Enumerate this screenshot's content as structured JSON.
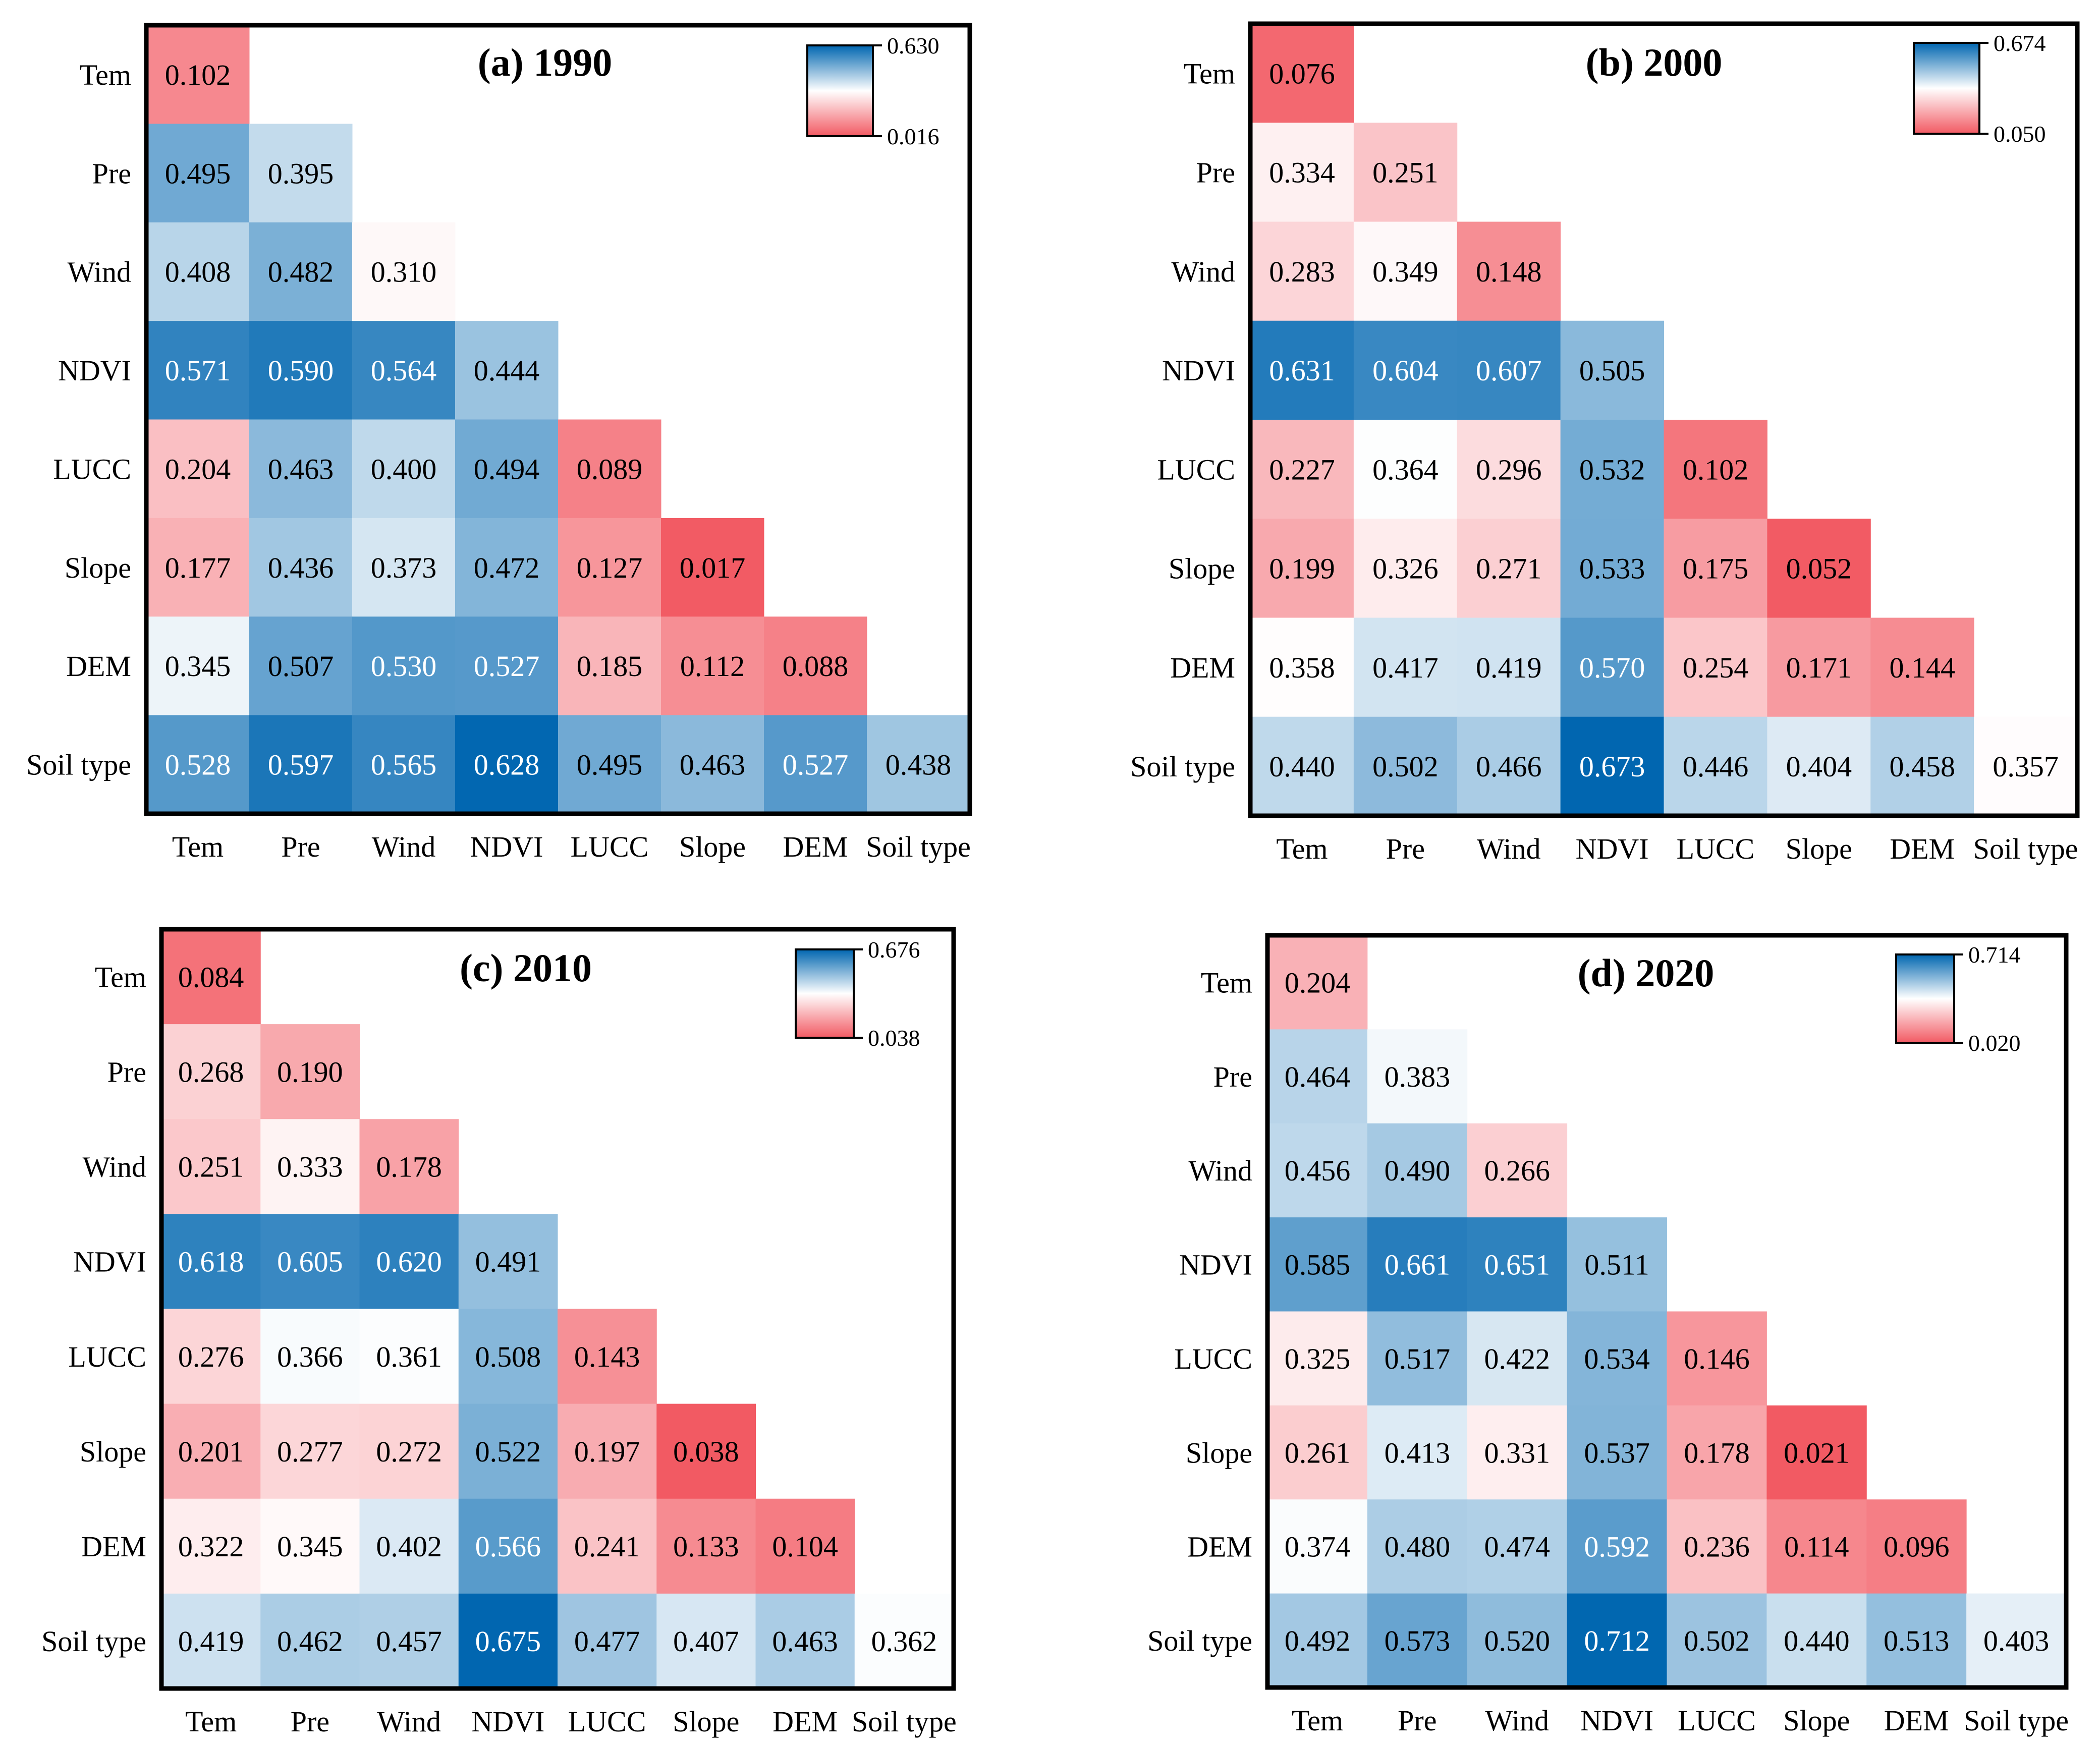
{
  "variables": [
    "Tem",
    "Pre",
    "Wind",
    "NDVI",
    "LUCC",
    "Slope",
    "DEM",
    "Soil type"
  ],
  "colors": {
    "high": "#0066b0",
    "mid": "#ffffff",
    "low": "#f25a63",
    "frame": "#000000",
    "text_dark": "#000000",
    "text_light": "#ffffff"
  },
  "chart_data": [
    {
      "type": "heatmap",
      "title": "(a) 1990",
      "colorbar": {
        "max_label": "0.630",
        "min_label": "0.016",
        "max": 0.63,
        "min": 0.016
      },
      "rows": [
        "Tem",
        "Pre",
        "Wind",
        "NDVI",
        "LUCC",
        "Slope",
        "DEM",
        "Soil type"
      ],
      "columns": [
        "Tem",
        "Pre",
        "Wind",
        "NDVI",
        "LUCC",
        "Slope",
        "DEM",
        "Soil type"
      ],
      "values": [
        [
          "0.102"
        ],
        [
          "0.495",
          "0.395"
        ],
        [
          "0.408",
          "0.482",
          "0.310"
        ],
        [
          "0.571",
          "0.590",
          "0.564",
          "0.444"
        ],
        [
          "0.204",
          "0.463",
          "0.400",
          "0.494",
          "0.089"
        ],
        [
          "0.177",
          "0.436",
          "0.373",
          "0.472",
          "0.127",
          "0.017"
        ],
        [
          "0.345",
          "0.507",
          "0.530",
          "0.527",
          "0.185",
          "0.112",
          "0.088"
        ],
        [
          "0.528",
          "0.597",
          "0.565",
          "0.628",
          "0.495",
          "0.463",
          "0.527",
          "0.438"
        ]
      ]
    },
    {
      "type": "heatmap",
      "title": "(b) 2000",
      "colorbar": {
        "max_label": "0.674",
        "min_label": "0.050",
        "max": 0.674,
        "min": 0.05
      },
      "rows": [
        "Tem",
        "Pre",
        "Wind",
        "NDVI",
        "LUCC",
        "Slope",
        "DEM",
        "Soil type"
      ],
      "columns": [
        "Tem",
        "Pre",
        "Wind",
        "NDVI",
        "LUCC",
        "Slope",
        "DEM",
        "Soil type"
      ],
      "values": [
        [
          "0.076"
        ],
        [
          "0.334",
          "0.251"
        ],
        [
          "0.283",
          "0.349",
          "0.148"
        ],
        [
          "0.631",
          "0.604",
          "0.607",
          "0.505"
        ],
        [
          "0.227",
          "0.364",
          "0.296",
          "0.532",
          "0.102"
        ],
        [
          "0.199",
          "0.326",
          "0.271",
          "0.533",
          "0.175",
          "0.052"
        ],
        [
          "0.358",
          "0.417",
          "0.419",
          "0.570",
          "0.254",
          "0.171",
          "0.144"
        ],
        [
          "0.440",
          "0.502",
          "0.466",
          "0.673",
          "0.446",
          "0.404",
          "0.458",
          "0.357"
        ]
      ]
    },
    {
      "type": "heatmap",
      "title": "(c) 2010",
      "colorbar": {
        "max_label": "0.676",
        "min_label": "0.038",
        "max": 0.676,
        "min": 0.038
      },
      "rows": [
        "Tem",
        "Pre",
        "Wind",
        "NDVI",
        "LUCC",
        "Slope",
        "DEM",
        "Soil type"
      ],
      "columns": [
        "Tem",
        "Pre",
        "Wind",
        "NDVI",
        "LUCC",
        "Slope",
        "DEM",
        "Soil type"
      ],
      "values": [
        [
          "0.084"
        ],
        [
          "0.268",
          "0.190"
        ],
        [
          "0.251",
          "0.333",
          "0.178"
        ],
        [
          "0.618",
          "0.605",
          "0.620",
          "0.491"
        ],
        [
          "0.276",
          "0.366",
          "0.361",
          "0.508",
          "0.143"
        ],
        [
          "0.201",
          "0.277",
          "0.272",
          "0.522",
          "0.197",
          "0.038"
        ],
        [
          "0.322",
          "0.345",
          "0.402",
          "0.566",
          "0.241",
          "0.133",
          "0.104"
        ],
        [
          "0.419",
          "0.462",
          "0.457",
          "0.675",
          "0.477",
          "0.407",
          "0.463",
          "0.362"
        ]
      ]
    },
    {
      "type": "heatmap",
      "title": "(d) 2020",
      "colorbar": {
        "max_label": "0.714",
        "min_label": "0.020",
        "max": 0.714,
        "min": 0.02
      },
      "rows": [
        "Tem",
        "Pre",
        "Wind",
        "NDVI",
        "LUCC",
        "Slope",
        "DEM",
        "Soil type"
      ],
      "columns": [
        "Tem",
        "Pre",
        "Wind",
        "NDVI",
        "LUCC",
        "Slope",
        "DEM",
        "Soil type"
      ],
      "values": [
        [
          "0.204"
        ],
        [
          "0.464",
          "0.383"
        ],
        [
          "0.456",
          "0.490",
          "0.266"
        ],
        [
          "0.585",
          "0.661",
          "0.651",
          "0.511"
        ],
        [
          "0.325",
          "0.517",
          "0.422",
          "0.534",
          "0.146"
        ],
        [
          "0.261",
          "0.413",
          "0.331",
          "0.537",
          "0.178",
          "0.021"
        ],
        [
          "0.374",
          "0.480",
          "0.474",
          "0.592",
          "0.236",
          "0.114",
          "0.096"
        ],
        [
          "0.492",
          "0.573",
          "0.520",
          "0.712",
          "0.502",
          "0.440",
          "0.513",
          "0.403"
        ]
      ]
    }
  ]
}
